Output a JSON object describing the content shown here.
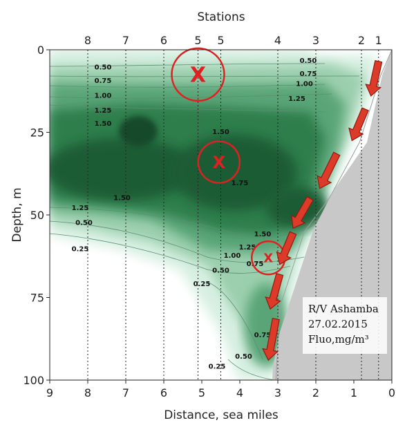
{
  "chart_data": {
    "type": "heatmap",
    "title": "",
    "top_axis_label": "Stations",
    "xlabel": "Distance, sea miles",
    "ylabel": "Depth, m",
    "x_ticks": [
      "9",
      "8",
      "7",
      "6",
      "5",
      "4",
      "3",
      "2",
      "1",
      "0"
    ],
    "y_ticks": [
      "0",
      "25",
      "50",
      "75",
      "100"
    ],
    "xlim": [
      9,
      0
    ],
    "ylim": [
      0,
      100
    ],
    "stations": [
      {
        "label": "8",
        "x": 8.0
      },
      {
        "label": "7",
        "x": 7.0
      },
      {
        "label": "6",
        "x": 6.0
      },
      {
        "label": "5",
        "x": 5.1
      },
      {
        "label": "5",
        "x": 4.5
      },
      {
        "label": "4",
        "x": 3.0
      },
      {
        "label": "3",
        "x": 2.0
      },
      {
        "label": "2",
        "x": 0.8
      },
      {
        "label": "1",
        "x": 0.35
      }
    ],
    "contour_levels": [
      0.25,
      0.5,
      0.75,
      1.0,
      1.25,
      1.5,
      1.75
    ],
    "contour_labels": [
      {
        "text": "0.50",
        "x": 7.6,
        "y": 6
      },
      {
        "text": "0.75",
        "x": 7.6,
        "y": 10
      },
      {
        "text": "1.00",
        "x": 7.6,
        "y": 14.5
      },
      {
        "text": "1.25",
        "x": 7.6,
        "y": 19
      },
      {
        "text": "1.50",
        "x": 7.6,
        "y": 23
      },
      {
        "text": "1.50",
        "x": 4.5,
        "y": 25.5
      },
      {
        "text": "1.75",
        "x": 4.0,
        "y": 41
      },
      {
        "text": "1.50",
        "x": 7.1,
        "y": 45.5
      },
      {
        "text": "1.25",
        "x": 8.2,
        "y": 48.5
      },
      {
        "text": "0.50",
        "x": 8.1,
        "y": 53
      },
      {
        "text": "0.25",
        "x": 8.2,
        "y": 61
      },
      {
        "text": "0.50",
        "x": 2.2,
        "y": 4
      },
      {
        "text": "0.75",
        "x": 2.2,
        "y": 8
      },
      {
        "text": "1.00",
        "x": 2.3,
        "y": 11
      },
      {
        "text": "1.25",
        "x": 2.5,
        "y": 15.5
      },
      {
        "text": "1.50",
        "x": 3.4,
        "y": 56.5
      },
      {
        "text": "1.25",
        "x": 3.8,
        "y": 60.5
      },
      {
        "text": "1.00",
        "x": 4.2,
        "y": 63
      },
      {
        "text": "0.75",
        "x": 3.6,
        "y": 65.5
      },
      {
        "text": "0.50",
        "x": 4.5,
        "y": 67.5
      },
      {
        "text": "0.25",
        "x": 5.0,
        "y": 71.5
      },
      {
        "text": "0.75",
        "x": 3.4,
        "y": 87
      },
      {
        "text": "0.50",
        "x": 3.9,
        "y": 93.5
      },
      {
        "text": "0.25",
        "x": 4.6,
        "y": 96.5
      }
    ],
    "markers": [
      {
        "symbol": "X",
        "x": 5.1,
        "y": 7.5,
        "size": "large"
      },
      {
        "symbol": "X",
        "x": 4.55,
        "y": 34,
        "size": "medium"
      },
      {
        "symbol": "X",
        "x": 3.25,
        "y": 63,
        "size": "small"
      }
    ],
    "arrows_along_slope": [
      {
        "from": [
          0.35,
          3.5
        ],
        "to": [
          0.55,
          14
        ]
      },
      {
        "from": [
          0.7,
          18
        ],
        "to": [
          1.05,
          27.5
        ]
      },
      {
        "from": [
          1.45,
          31.5
        ],
        "to": [
          1.9,
          42
        ]
      },
      {
        "from": [
          2.15,
          45
        ],
        "to": [
          2.6,
          54
        ]
      },
      {
        "from": [
          2.6,
          55.5
        ],
        "to": [
          2.95,
          65
        ]
      },
      {
        "from": [
          2.95,
          68
        ],
        "to": [
          3.2,
          78.5
        ]
      },
      {
        "from": [
          3.05,
          81.5
        ],
        "to": [
          3.25,
          94
        ]
      }
    ],
    "seafloor_profile": [
      {
        "x": 0.0,
        "y": 0
      },
      {
        "x": 0.3,
        "y": 8
      },
      {
        "x": 0.85,
        "y": 28
      },
      {
        "x": 1.65,
        "y": 45
      },
      {
        "x": 2.3,
        "y": 55
      },
      {
        "x": 2.95,
        "y": 78
      },
      {
        "x": 3.05,
        "y": 100
      }
    ],
    "info_box": [
      "R/V Ashamba",
      "27.02.2015",
      "Fluo,mg/m³"
    ],
    "colors": {
      "max": "#1a5c35",
      "high": "#2f7e4c",
      "mid": "#5aa578",
      "low": "#9ccfae",
      "min": "#d7efe2",
      "background": "#f2faf5",
      "seafloor": "#c8c8c8",
      "marker": "#e02020",
      "arrow_fill": "#dd3b2a",
      "arrow_stroke": "#8f1a10"
    }
  }
}
